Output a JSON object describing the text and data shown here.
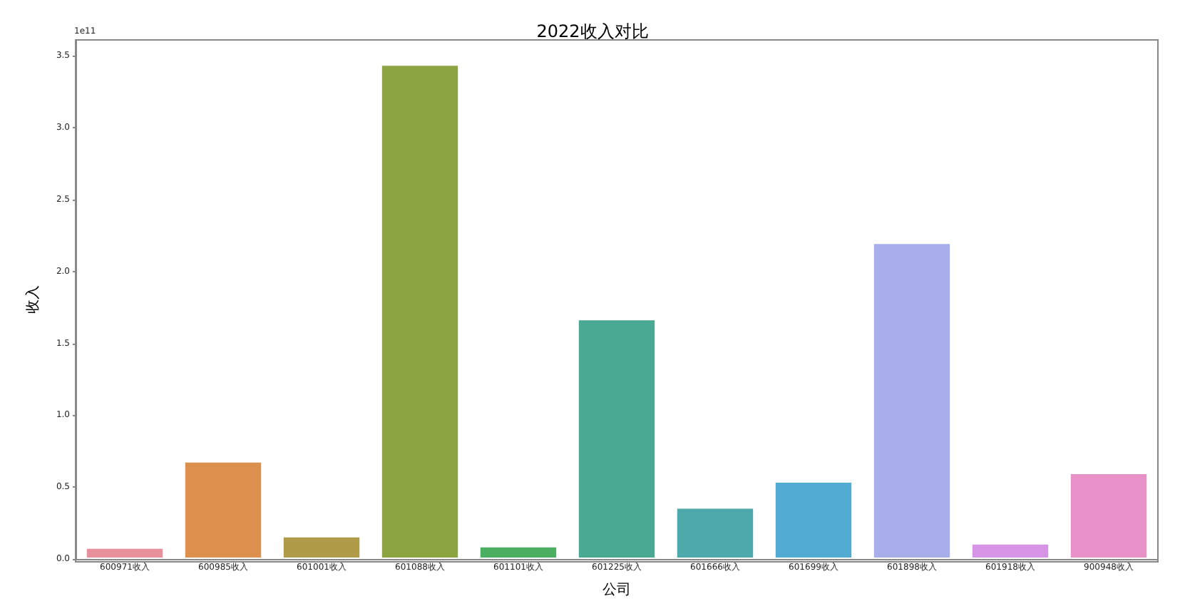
{
  "chart_data": {
    "type": "bar",
    "title": "2022收入对比",
    "xlabel": "公司",
    "ylabel": "收入",
    "annotations": [
      "1e11"
    ],
    "categories": [
      "600971收入",
      "600985收入",
      "601001收入",
      "601088收入",
      "601101收入",
      "601225收入",
      "601666收入",
      "601699收入",
      "601898收入",
      "601918收入",
      "900948收入"
    ],
    "values": [
      0.08,
      0.68,
      0.16,
      3.44,
      0.09,
      1.67,
      0.36,
      0.54,
      2.2,
      0.11,
      0.6
    ],
    "colors": [
      "#e8909c",
      "#dc904e",
      "#b09c48",
      "#8da443",
      "#4aaf61",
      "#4aa993",
      "#4da9ab",
      "#52abd2",
      "#a8aeea",
      "#d794e6",
      "#e890c8"
    ],
    "ylim": [
      0,
      3.61
    ],
    "yticks": [
      {
        "value": 0,
        "label": "0.0"
      },
      {
        "value": 0.5,
        "label": "0.5"
      },
      {
        "value": 1,
        "label": "1.0"
      },
      {
        "value": 1.5,
        "label": "1.5"
      },
      {
        "value": 2,
        "label": "2.0"
      },
      {
        "value": 2.5,
        "label": "2.5"
      },
      {
        "value": 3,
        "label": "3.0"
      },
      {
        "value": 3.5,
        "label": "3.5"
      }
    ],
    "grid": false
  }
}
